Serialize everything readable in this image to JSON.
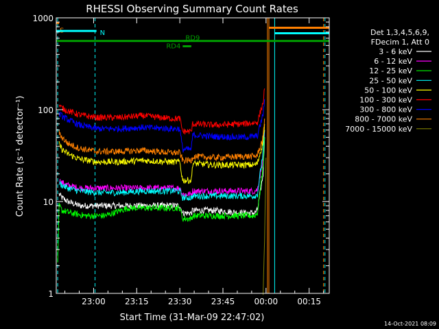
{
  "chart_data": {
    "type": "line",
    "title": "RHESSI Observing Summary Count Rates",
    "xlabel": "Start Time (31-Mar-09 22:47:02)",
    "ylabel": "Count Rate (s⁻¹ detector⁻¹)",
    "yscale": "log",
    "ylim": [
      1,
      1000
    ],
    "xlim_minutes_after_start": [
      0,
      95
    ],
    "x_ticks": [
      {
        "label": "23:00",
        "value": 13
      },
      {
        "label": "23:15",
        "value": 28
      },
      {
        "label": "23:30",
        "value": 43
      },
      {
        "label": "23:45",
        "value": 58
      },
      {
        "label": "00:00",
        "value": 73
      },
      {
        "label": "00:15",
        "value": 88
      }
    ],
    "y_ticks": [
      {
        "label": "1",
        "value": 1
      },
      {
        "label": "10",
        "value": 10
      },
      {
        "label": "100",
        "value": 100
      },
      {
        "label": "1000",
        "value": 1000
      }
    ],
    "legend_header": [
      "Det 1,3,4,5,6,9,",
      "FDecim 1, Att 0"
    ],
    "series": [
      {
        "name": "3 - 6 keV",
        "color": "#ffffff",
        "x": [
          1,
          2,
          4,
          8,
          14,
          22,
          30,
          40,
          43,
          44,
          47,
          47.5,
          55,
          65,
          69,
          70,
          72,
          72.5
        ],
        "y": [
          12,
          11,
          10,
          9,
          9,
          9,
          9,
          9,
          9,
          7.5,
          7.5,
          8,
          8,
          7.5,
          7.5,
          8,
          20,
          50
        ]
      },
      {
        "name": "6 - 12 keV",
        "color": "#ff00ff",
        "x": [
          1,
          2,
          4,
          8,
          14,
          22,
          30,
          40,
          43,
          44,
          47,
          47.5,
          55,
          65,
          69,
          70,
          72,
          72.5
        ],
        "y": [
          17,
          16,
          15,
          14,
          14,
          14,
          14,
          14,
          14,
          12,
          12,
          13,
          13,
          13,
          13,
          13.5,
          30,
          60
        ]
      },
      {
        "name": "12 - 25 keV",
        "color": "#00ff00",
        "x": [
          0.5,
          1,
          2,
          5,
          10,
          17,
          25,
          35,
          43,
          44,
          47,
          47.5,
          55,
          65,
          69,
          70,
          72,
          72.5
        ],
        "y": [
          2,
          9,
          8,
          7.5,
          7,
          7,
          8.5,
          8.5,
          8.5,
          6.5,
          6.5,
          7,
          7,
          7,
          7,
          7.5,
          25,
          50
        ]
      },
      {
        "name": "25 - 50 keV",
        "color": "#00ffff",
        "x": [
          1,
          2,
          4,
          8,
          14,
          22,
          30,
          40,
          43,
          44,
          47,
          47.5,
          55,
          65,
          69,
          70,
          72,
          72.5
        ],
        "y": [
          16,
          15,
          14,
          13,
          12.5,
          12.5,
          13,
          13,
          13,
          11,
          11,
          11.5,
          11.5,
          11.5,
          11.5,
          12,
          35,
          60
        ]
      },
      {
        "name": "50 - 100 keV",
        "color": "#ffff00",
        "x": [
          1,
          2,
          4,
          8,
          14,
          22,
          30,
          40,
          43,
          44,
          47,
          47.5,
          55,
          65,
          69,
          70,
          72,
          72.5
        ],
        "y": [
          42,
          37,
          33,
          29,
          27,
          27,
          28,
          27,
          27,
          17,
          17,
          26,
          25,
          25,
          25,
          26,
          45,
          70
        ]
      },
      {
        "name": "100 - 300 keV",
        "color": "#ff0000",
        "x": [
          1,
          2,
          4,
          8,
          14,
          22,
          30,
          40,
          43,
          44,
          47,
          47.5,
          55,
          65,
          69,
          70,
          72,
          72.5
        ],
        "y": [
          110,
          104,
          97,
          88,
          82,
          82,
          86,
          80,
          80,
          58,
          58,
          70,
          68,
          70,
          72,
          73,
          120,
          170
        ]
      },
      {
        "name": "300 - 800 keV",
        "color": "#0000ff",
        "x": [
          1,
          2,
          4,
          8,
          14,
          22,
          30,
          40,
          43,
          44,
          47,
          47.5,
          55,
          65,
          69,
          70,
          72,
          72.5
        ],
        "y": [
          90,
          85,
          78,
          68,
          62,
          62,
          64,
          62,
          62,
          37,
          37,
          53,
          51,
          50,
          51,
          52,
          90,
          130
        ]
      },
      {
        "name": "800 - 7000 keV",
        "color": "#ff8000",
        "x": [
          1,
          2,
          4,
          8,
          14,
          22,
          30,
          40,
          43,
          44,
          47,
          47.5,
          55,
          65,
          69,
          70,
          72,
          72.5
        ],
        "y": [
          55,
          50,
          43,
          38,
          35,
          35,
          36,
          34,
          34,
          28,
          28,
          31,
          30,
          31,
          31,
          32,
          50,
          80
        ]
      },
      {
        "name": "7000 - 15000 keV",
        "color": "#808000",
        "x": [
          72,
          72.5,
          73
        ],
        "y": [
          1,
          4,
          30
        ]
      }
    ],
    "flags": [
      {
        "label": "S",
        "color": "#ff8000",
        "x": [
          0,
          1
        ],
        "level": 880
      },
      {
        "label": "N",
        "color": "#00ffff",
        "x": [
          0,
          14
        ],
        "level": 720
      },
      {
        "label": "",
        "color": "#00a000",
        "x": [
          0,
          95
        ],
        "level": 560
      },
      {
        "label": "RD9",
        "color": "#00a000",
        "x": [
          44,
          46
        ],
        "level": 560
      },
      {
        "label": "RD4",
        "color": "#00a000",
        "x": [
          44,
          47
        ],
        "level": 490
      },
      {
        "label": "",
        "color": "#ff8000",
        "x": [
          74,
          95
        ],
        "level": 780
      },
      {
        "label": "",
        "color": "#00ffff",
        "x": [
          76,
          95
        ],
        "level": 680
      }
    ],
    "vlines": [
      {
        "x": 0.5,
        "color": "#00ffff",
        "style": "dash"
      },
      {
        "x": 13.5,
        "color": "#00ffff",
        "style": "dash"
      },
      {
        "x": 73.5,
        "color": "#ff8000",
        "style": "solid"
      },
      {
        "x": 74,
        "color": "#ff8000",
        "style": "solid"
      },
      {
        "x": 76,
        "color": "#00ffff",
        "style": "solid"
      },
      {
        "x": 93,
        "color": "#ff8000",
        "style": "dash"
      },
      {
        "x": 93.5,
        "color": "#00ffff",
        "style": "dash"
      }
    ],
    "grid": false,
    "legend_position": "right"
  },
  "footer_timestamp": "14-Oct-2021 08:09"
}
